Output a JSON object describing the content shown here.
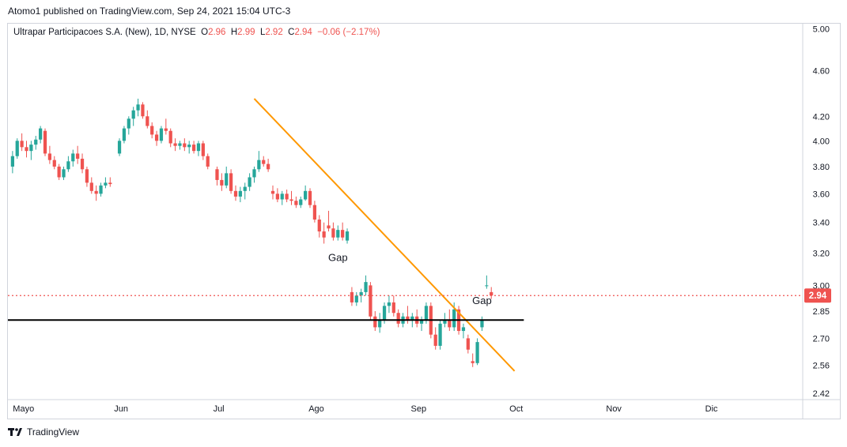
{
  "header": {
    "published": "Atomo1 published on TradingView.com, Sep 24, 2021 15:04 UTC-3"
  },
  "legend": {
    "symbol": "Ultrapar Participacoes S.A. (New), 1D, NYSE",
    "o_key": "O",
    "o": "2.96",
    "h_key": "H",
    "h": "2.99",
    "l_key": "L",
    "l": "2.92",
    "c_key": "C",
    "c": "2.94",
    "change": "−0.06 (−2.17%)"
  },
  "footer": {
    "brand": "TradingView"
  },
  "colors": {
    "up": "#26a69a",
    "down": "#ef5350",
    "trendline": "#ff9800",
    "support": "#000000",
    "last_price": "#ef5350"
  },
  "chart_data": {
    "type": "candlestick",
    "y_scale": "log",
    "ylim": [
      2.39,
      5.05
    ],
    "y_ticks": [
      5.0,
      4.6,
      4.2,
      4.0,
      3.8,
      3.6,
      3.4,
      3.2,
      3.0,
      2.85,
      2.7,
      2.56,
      2.42
    ],
    "y_tick_labels": [
      "5.00",
      "4.60",
      "4.20",
      "4.00",
      "3.80",
      "3.60",
      "3.40",
      "3.20",
      "3.00",
      "2.85",
      "2.70",
      "2.56",
      "2.42"
    ],
    "x_ticks": [
      {
        "label": "Mayo",
        "day": 0
      },
      {
        "label": "Jun",
        "day": 21
      },
      {
        "label": "Jul",
        "day": 42
      },
      {
        "label": "Ago",
        "day": 63
      },
      {
        "label": "Sep",
        "day": 85
      },
      {
        "label": "Oct",
        "day": 106
      },
      {
        "label": "Nov",
        "day": 127
      },
      {
        "label": "Dic",
        "day": 148
      }
    ],
    "x_range": [
      -2,
      169
    ],
    "last_price": 2.94,
    "last_price_label": "2.94",
    "candles": [
      [
        -1,
        3.8,
        3.92,
        3.75,
        3.88
      ],
      [
        0,
        3.88,
        4.02,
        3.86,
        4.0
      ],
      [
        1,
        4.0,
        4.06,
        3.92,
        3.95
      ],
      [
        2,
        3.95,
        4.0,
        3.87,
        3.92
      ],
      [
        3,
        3.92,
        4.0,
        3.85,
        3.97
      ],
      [
        4,
        3.97,
        4.04,
        3.93,
        4.01
      ],
      [
        5,
        4.01,
        4.12,
        3.98,
        4.1
      ],
      [
        6,
        4.08,
        4.1,
        3.88,
        3.9
      ],
      [
        7,
        3.9,
        3.96,
        3.82,
        3.85
      ],
      [
        8,
        3.85,
        3.88,
        3.78,
        3.8
      ],
      [
        9,
        3.8,
        3.82,
        3.7,
        3.72
      ],
      [
        10,
        3.72,
        3.8,
        3.7,
        3.78
      ],
      [
        11,
        3.78,
        3.88,
        3.76,
        3.84
      ],
      [
        12,
        3.84,
        3.93,
        3.8,
        3.9
      ],
      [
        13,
        3.9,
        3.96,
        3.82,
        3.86
      ],
      [
        14,
        3.86,
        3.9,
        3.75,
        3.78
      ],
      [
        15,
        3.78,
        3.8,
        3.65,
        3.68
      ],
      [
        16,
        3.68,
        3.72,
        3.6,
        3.62
      ],
      [
        17,
        3.62,
        3.66,
        3.55,
        3.6
      ],
      [
        18,
        3.6,
        3.68,
        3.58,
        3.66
      ],
      [
        19,
        3.66,
        3.72,
        3.64,
        3.68
      ],
      [
        20,
        3.68,
        3.72,
        3.65,
        3.67
      ],
      [
        22,
        3.9,
        4.02,
        3.88,
        4.0
      ],
      [
        23,
        4.0,
        4.12,
        3.98,
        4.1
      ],
      [
        24,
        4.1,
        4.2,
        4.05,
        4.18
      ],
      [
        25,
        4.18,
        4.28,
        4.12,
        4.25
      ],
      [
        26,
        4.25,
        4.35,
        4.2,
        4.3
      ],
      [
        27,
        4.3,
        4.32,
        4.18,
        4.2
      ],
      [
        28,
        4.2,
        4.25,
        4.1,
        4.12
      ],
      [
        29,
        4.12,
        4.15,
        4.02,
        4.05
      ],
      [
        30,
        4.05,
        4.08,
        3.96,
        4.0
      ],
      [
        31,
        4.0,
        4.12,
        3.98,
        4.1
      ],
      [
        32,
        4.1,
        4.18,
        4.05,
        4.08
      ],
      [
        33,
        4.08,
        4.1,
        3.95,
        3.98
      ],
      [
        34,
        3.98,
        4.02,
        3.92,
        3.96
      ],
      [
        35,
        3.96,
        4.0,
        3.93,
        3.98
      ],
      [
        36,
        3.98,
        4.02,
        3.92,
        3.95
      ],
      [
        37,
        3.95,
        4.0,
        3.9,
        3.97
      ],
      [
        38,
        3.97,
        4.0,
        3.9,
        3.92
      ],
      [
        39,
        3.92,
        4.0,
        3.88,
        3.98
      ],
      [
        40,
        3.98,
        4.0,
        3.85,
        3.88
      ],
      [
        41,
        3.88,
        3.9,
        3.78,
        3.8
      ],
      [
        43,
        3.78,
        3.8,
        3.66,
        3.7
      ],
      [
        44,
        3.7,
        3.75,
        3.62,
        3.66
      ],
      [
        45,
        3.66,
        3.8,
        3.64,
        3.75
      ],
      [
        46,
        3.75,
        3.78,
        3.6,
        3.62
      ],
      [
        47,
        3.62,
        3.66,
        3.55,
        3.58
      ],
      [
        48,
        3.58,
        3.65,
        3.54,
        3.62
      ],
      [
        49,
        3.62,
        3.68,
        3.56,
        3.65
      ],
      [
        50,
        3.65,
        3.75,
        3.62,
        3.72
      ],
      [
        51,
        3.72,
        3.8,
        3.68,
        3.78
      ],
      [
        52,
        3.78,
        3.92,
        3.76,
        3.85
      ],
      [
        53,
        3.85,
        3.88,
        3.8,
        3.82
      ],
      [
        54,
        3.82,
        3.86,
        3.76,
        3.78
      ],
      [
        55,
        3.62,
        3.66,
        3.56,
        3.6
      ],
      [
        56,
        3.6,
        3.64,
        3.54,
        3.56
      ],
      [
        57,
        3.56,
        3.62,
        3.52,
        3.6
      ],
      [
        58,
        3.6,
        3.63,
        3.54,
        3.56
      ],
      [
        59,
        3.56,
        3.62,
        3.52,
        3.55
      ],
      [
        60,
        3.55,
        3.58,
        3.5,
        3.52
      ],
      [
        61,
        3.52,
        3.58,
        3.5,
        3.56
      ],
      [
        62,
        3.56,
        3.66,
        3.55,
        3.62
      ],
      [
        63,
        3.62,
        3.64,
        3.5,
        3.52
      ],
      [
        64,
        3.52,
        3.55,
        3.4,
        3.42
      ],
      [
        65,
        3.42,
        3.45,
        3.3,
        3.34
      ],
      [
        66,
        3.34,
        3.4,
        3.26,
        3.3
      ],
      [
        67,
        3.38,
        3.48,
        3.34,
        3.36
      ],
      [
        68,
        3.36,
        3.4,
        3.28,
        3.3
      ],
      [
        69,
        3.3,
        3.38,
        3.28,
        3.35
      ],
      [
        70,
        3.35,
        3.4,
        3.28,
        3.3
      ],
      [
        71,
        3.28,
        3.36,
        3.26,
        3.34
      ],
      [
        72,
        2.96,
        2.99,
        2.88,
        2.9
      ],
      [
        73,
        2.9,
        2.96,
        2.88,
        2.94
      ],
      [
        74,
        2.94,
        2.98,
        2.9,
        2.96
      ],
      [
        75,
        2.96,
        3.06,
        2.94,
        3.02
      ],
      [
        76,
        3.0,
        3.02,
        2.8,
        2.82
      ],
      [
        77,
        2.82,
        2.85,
        2.74,
        2.76
      ],
      [
        78,
        2.76,
        2.84,
        2.73,
        2.8
      ],
      [
        79,
        2.8,
        2.9,
        2.78,
        2.88
      ],
      [
        80,
        2.88,
        2.94,
        2.84,
        2.9
      ],
      [
        81,
        2.9,
        2.94,
        2.82,
        2.84
      ],
      [
        82,
        2.84,
        2.86,
        2.76,
        2.78
      ],
      [
        83,
        2.78,
        2.84,
        2.76,
        2.82
      ],
      [
        84,
        2.82,
        2.88,
        2.78,
        2.8
      ],
      [
        85,
        2.8,
        2.84,
        2.76,
        2.82
      ],
      [
        86,
        2.82,
        2.86,
        2.76,
        2.78
      ],
      [
        87,
        2.78,
        2.82,
        2.74,
        2.8
      ],
      [
        88,
        2.8,
        2.9,
        2.78,
        2.88
      ],
      [
        89,
        2.88,
        2.9,
        2.7,
        2.72
      ],
      [
        90,
        2.72,
        2.76,
        2.64,
        2.66
      ],
      [
        91,
        2.66,
        2.8,
        2.64,
        2.78
      ],
      [
        92,
        2.78,
        2.84,
        2.76,
        2.8
      ],
      [
        93,
        2.8,
        2.86,
        2.74,
        2.76
      ],
      [
        94,
        2.76,
        2.9,
        2.74,
        2.86
      ],
      [
        95,
        2.86,
        2.88,
        2.72,
        2.74
      ],
      [
        96,
        2.74,
        2.78,
        2.7,
        2.76
      ],
      [
        97,
        2.7,
        2.72,
        2.62,
        2.64
      ],
      [
        98,
        2.58,
        2.62,
        2.55,
        2.57
      ],
      [
        99,
        2.57,
        2.7,
        2.56,
        2.68
      ],
      [
        100,
        2.76,
        2.82,
        2.74,
        2.8
      ],
      [
        101,
        3.0,
        3.06,
        2.98,
        3.0
      ],
      [
        102,
        2.96,
        2.99,
        2.92,
        2.94
      ]
    ],
    "trendline": {
      "from": [
        51,
        4.35
      ],
      "to": [
        107,
        2.53
      ],
      "color": "#ff9800"
    },
    "support_line": {
      "from": [
        -2,
        2.8
      ],
      "to": [
        109,
        2.8
      ],
      "value": 2.8,
      "color": "#000000"
    },
    "annotations": [
      {
        "text": "Gap",
        "day": 69,
        "price": 3.15
      },
      {
        "text": "Gap",
        "day": 100,
        "price": 2.89
      }
    ]
  }
}
